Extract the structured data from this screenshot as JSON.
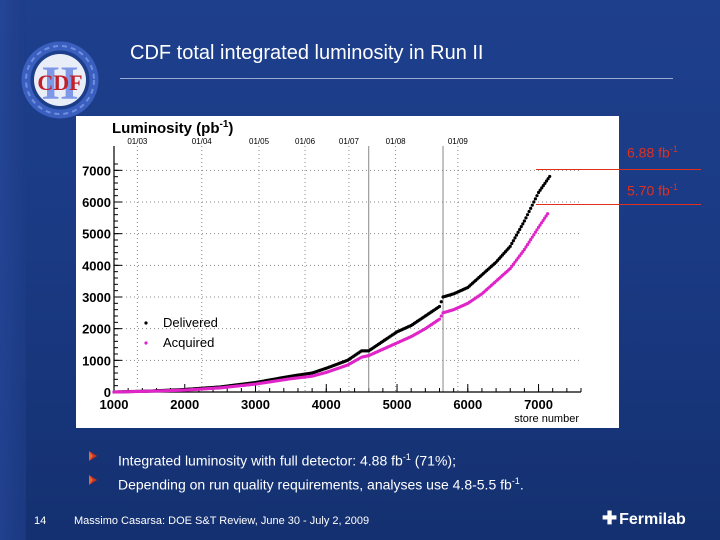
{
  "slide": {
    "title": "CDF total integrated luminosity in Run II",
    "logo_text": "CDF",
    "logo_roman": "II",
    "page_number": "14",
    "footer": "Massimo Casarsa: DOE S&T Review, June 30 - July 2, 2009",
    "brand": "Fermilab"
  },
  "callouts": [
    {
      "value": "6.88 fb",
      "sup": "-1",
      "color": "#e0301e"
    },
    {
      "value": "5.70 fb",
      "sup": "-1",
      "color": "#e0301e"
    }
  ],
  "bullets": [
    {
      "pre": "Integrated luminosity with full detector: 4.88 fb",
      "sup": "-1",
      "post": " (71%);"
    },
    {
      "pre": "Depending on run quality requirements, analyses use 4.8-5.5 fb",
      "sup": "-1",
      "post": "."
    }
  ],
  "chart_data": {
    "type": "scatter",
    "ylabel": "Luminosity (pb",
    "ylabel_sup": "-1",
    "ylabel_close": ")",
    "xlabel": "store number",
    "xlim": [
      1000,
      7600
    ],
    "ylim": [
      0,
      7200
    ],
    "x_ticks": [
      1000,
      2000,
      3000,
      4000,
      5000,
      6000,
      7000
    ],
    "y_ticks": [
      0,
      1000,
      2000,
      3000,
      4000,
      5000,
      6000,
      7000
    ],
    "grid": "dotted",
    "top_axis": [
      {
        "label": "01/03",
        "x": 1330
      },
      {
        "label": "01/04",
        "x": 2240
      },
      {
        "label": "01/05",
        "x": 3050
      },
      {
        "label": "01/06",
        "x": 3700
      },
      {
        "label": "01/07",
        "x": 4320
      },
      {
        "label": "01/08",
        "x": 4980
      },
      {
        "label": "01/09",
        "x": 5860
      }
    ],
    "vlines": [
      4600,
      5650
    ],
    "legend": "left",
    "series": [
      {
        "name": "Delivered",
        "color": "#000000",
        "points": [
          [
            1000,
            0
          ],
          [
            1500,
            30
          ],
          [
            2000,
            80
          ],
          [
            2500,
            160
          ],
          [
            3000,
            300
          ],
          [
            3500,
            500
          ],
          [
            3800,
            600
          ],
          [
            4000,
            750
          ],
          [
            4300,
            1000
          ],
          [
            4500,
            1300
          ],
          [
            4600,
            1300
          ],
          [
            4800,
            1600
          ],
          [
            5000,
            1900
          ],
          [
            5200,
            2100
          ],
          [
            5400,
            2400
          ],
          [
            5600,
            2700
          ],
          [
            5650,
            3000
          ],
          [
            5800,
            3100
          ],
          [
            6000,
            3300
          ],
          [
            6200,
            3700
          ],
          [
            6400,
            4100
          ],
          [
            6600,
            4600
          ],
          [
            6800,
            5400
          ],
          [
            7000,
            6300
          ],
          [
            7180,
            6880
          ]
        ]
      },
      {
        "name": "Acquired",
        "color": "#e024c8",
        "points": [
          [
            1000,
            0
          ],
          [
            1500,
            25
          ],
          [
            2000,
            60
          ],
          [
            2500,
            130
          ],
          [
            3000,
            250
          ],
          [
            3500,
            420
          ],
          [
            3800,
            500
          ],
          [
            4000,
            620
          ],
          [
            4300,
            850
          ],
          [
            4500,
            1100
          ],
          [
            4600,
            1150
          ],
          [
            4800,
            1350
          ],
          [
            5000,
            1550
          ],
          [
            5200,
            1750
          ],
          [
            5400,
            2000
          ],
          [
            5600,
            2300
          ],
          [
            5650,
            2500
          ],
          [
            5800,
            2600
          ],
          [
            6000,
            2800
          ],
          [
            6200,
            3100
          ],
          [
            6400,
            3500
          ],
          [
            6600,
            3900
          ],
          [
            6800,
            4500
          ],
          [
            7000,
            5200
          ],
          [
            7150,
            5700
          ]
        ]
      }
    ]
  }
}
